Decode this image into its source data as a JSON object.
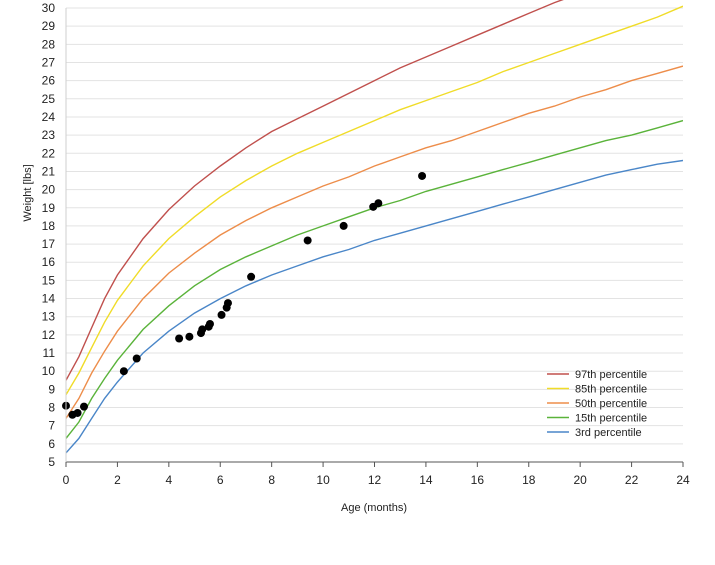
{
  "chart_data": {
    "type": "line",
    "title": "",
    "xlabel": "Age (months)",
    "ylabel": "Weight [lbs]",
    "xlim": [
      0,
      24
    ],
    "ylim": [
      5,
      30
    ],
    "x_ticks": [
      0,
      2,
      4,
      6,
      8,
      10,
      12,
      14,
      16,
      18,
      20,
      22,
      24
    ],
    "y_ticks": [
      5,
      6,
      7,
      8,
      9,
      10,
      11,
      12,
      13,
      14,
      15,
      16,
      17,
      18,
      19,
      20,
      21,
      22,
      23,
      24,
      25,
      26,
      27,
      28,
      29,
      30
    ],
    "grid": "horizontal",
    "legend_position": "bottom-right",
    "series": [
      {
        "name": "97th percentile",
        "color": "#c0504d",
        "x": [
          0,
          0.5,
          1,
          1.5,
          2,
          3,
          4,
          5,
          6,
          7,
          8,
          9,
          10,
          11,
          12,
          13,
          14,
          15,
          16,
          17,
          18,
          19,
          19.6
        ],
        "y": [
          9.5,
          10.8,
          12.4,
          14.0,
          15.3,
          17.3,
          18.9,
          20.2,
          21.3,
          22.3,
          23.2,
          23.9,
          24.6,
          25.3,
          26.0,
          26.7,
          27.3,
          27.9,
          28.5,
          29.1,
          29.7,
          30.3,
          30.6
        ]
      },
      {
        "name": "85th percentile",
        "color": "#f0dc28",
        "x": [
          0,
          0.5,
          1,
          1.5,
          2,
          3,
          4,
          5,
          6,
          7,
          8,
          9,
          10,
          11,
          12,
          13,
          14,
          15,
          16,
          17,
          18,
          19,
          20,
          21,
          22,
          23,
          24
        ],
        "y": [
          8.7,
          9.9,
          11.3,
          12.7,
          13.9,
          15.8,
          17.3,
          18.5,
          19.6,
          20.5,
          21.3,
          22.0,
          22.6,
          23.2,
          23.8,
          24.4,
          24.9,
          25.4,
          25.9,
          26.5,
          27.0,
          27.5,
          28.0,
          28.5,
          29.0,
          29.5,
          30.1
        ]
      },
      {
        "name": "50th percentile",
        "color": "#ed8d4a",
        "x": [
          0,
          0.5,
          1,
          1.5,
          2,
          3,
          4,
          5,
          6,
          7,
          8,
          9,
          10,
          11,
          12,
          13,
          14,
          15,
          16,
          17,
          18,
          19,
          20,
          21,
          22,
          23,
          24
        ],
        "y": [
          7.4,
          8.5,
          9.9,
          11.1,
          12.2,
          14.0,
          15.4,
          16.5,
          17.5,
          18.3,
          19.0,
          19.6,
          20.2,
          20.7,
          21.3,
          21.8,
          22.3,
          22.7,
          23.2,
          23.7,
          24.2,
          24.6,
          25.1,
          25.5,
          26.0,
          26.4,
          26.8
        ]
      },
      {
        "name": "15th percentile",
        "color": "#5ab33a",
        "x": [
          0,
          0.5,
          1,
          1.5,
          2,
          3,
          4,
          5,
          6,
          7,
          8,
          9,
          10,
          11,
          12,
          13,
          14,
          15,
          16,
          17,
          18,
          19,
          20,
          21,
          22,
          23,
          24
        ],
        "y": [
          6.3,
          7.2,
          8.5,
          9.6,
          10.6,
          12.3,
          13.6,
          14.7,
          15.6,
          16.3,
          16.9,
          17.5,
          18.0,
          18.5,
          19.0,
          19.4,
          19.9,
          20.3,
          20.7,
          21.1,
          21.5,
          21.9,
          22.3,
          22.7,
          23.0,
          23.4,
          23.8
        ]
      },
      {
        "name": "3rd percentile",
        "color": "#4a86c8",
        "x": [
          0,
          0.5,
          1,
          1.5,
          2,
          3,
          4,
          5,
          6,
          7,
          8,
          9,
          10,
          11,
          12,
          13,
          14,
          15,
          16,
          17,
          18,
          19,
          20,
          21,
          22,
          23,
          24
        ],
        "y": [
          5.5,
          6.3,
          7.4,
          8.5,
          9.4,
          11.0,
          12.2,
          13.2,
          14.0,
          14.7,
          15.3,
          15.8,
          16.3,
          16.7,
          17.2,
          17.6,
          18.0,
          18.4,
          18.8,
          19.2,
          19.6,
          20.0,
          20.4,
          20.8,
          21.1,
          21.4,
          21.6
        ]
      }
    ],
    "points": {
      "color": "#000000",
      "x": [
        0,
        0.25,
        0.45,
        0.7,
        2.25,
        2.75,
        4.4,
        4.8,
        5.25,
        5.3,
        5.55,
        5.6,
        6.05,
        6.25,
        6.3,
        7.2,
        9.4,
        10.8,
        11.95,
        12.15,
        13.85
      ],
      "y": [
        8.1,
        7.6,
        7.7,
        8.05,
        10.0,
        10.7,
        11.8,
        11.9,
        12.1,
        12.3,
        12.45,
        12.6,
        13.1,
        13.5,
        13.75,
        15.2,
        17.2,
        18.0,
        19.05,
        19.25,
        20.75
      ]
    }
  }
}
